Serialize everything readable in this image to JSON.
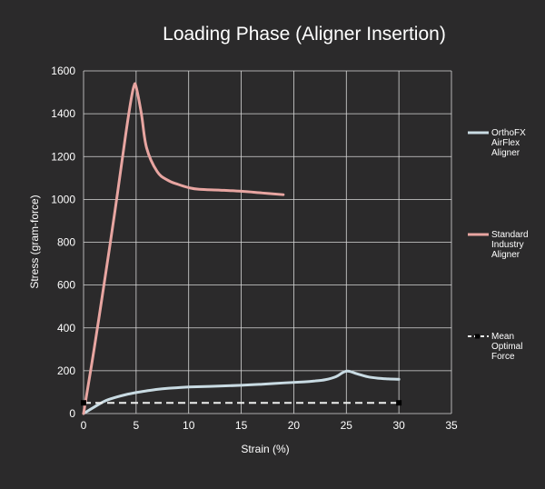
{
  "chart_data": {
    "type": "line",
    "title": "Loading Phase (Aligner Insertion)",
    "xlabel": "Strain (%)",
    "ylabel": "Stress (gram-force)",
    "xlim": [
      0,
      35
    ],
    "ylim": [
      0,
      1600
    ],
    "xticks": [
      "0",
      "5",
      "10",
      "15",
      "20",
      "25",
      "30",
      "35"
    ],
    "yticks": [
      "0",
      "200",
      "400",
      "600",
      "800",
      "1000",
      "1200",
      "1400",
      "1600"
    ],
    "grid": true,
    "legend_position": "right",
    "series": [
      {
        "name": "OrthoFX AirFlex Aligner",
        "color": "#c9dbe3",
        "style": "solid",
        "points": [
          [
            0,
            0
          ],
          [
            1,
            30
          ],
          [
            2,
            58
          ],
          [
            3,
            75
          ],
          [
            4,
            88
          ],
          [
            5,
            98
          ],
          [
            6,
            106
          ],
          [
            7,
            113
          ],
          [
            8,
            118
          ],
          [
            9,
            121
          ],
          [
            10,
            124
          ],
          [
            12,
            127
          ],
          [
            15,
            132
          ],
          [
            17,
            137
          ],
          [
            19,
            143
          ],
          [
            21,
            148
          ],
          [
            22,
            152
          ],
          [
            23,
            158
          ],
          [
            24,
            172
          ],
          [
            25,
            198
          ],
          [
            26,
            186
          ],
          [
            27,
            172
          ],
          [
            28,
            165
          ],
          [
            29,
            162
          ],
          [
            30,
            160
          ]
        ]
      },
      {
        "name": "Standard Industry Aligner",
        "color": "#e8a5a1",
        "style": "solid",
        "points": [
          [
            0,
            0
          ],
          [
            1,
            300
          ],
          [
            2,
            620
          ],
          [
            3,
            950
          ],
          [
            4,
            1300
          ],
          [
            4.5,
            1460
          ],
          [
            4.8,
            1530
          ],
          [
            5,
            1525
          ],
          [
            5.5,
            1400
          ],
          [
            6,
            1240
          ],
          [
            7,
            1130
          ],
          [
            8,
            1090
          ],
          [
            9,
            1070
          ],
          [
            10,
            1055
          ],
          [
            11,
            1047
          ],
          [
            13,
            1043
          ],
          [
            15,
            1038
          ],
          [
            17,
            1030
          ],
          [
            19,
            1022
          ]
        ]
      },
      {
        "name": "Mean Optimal Force",
        "color": "#eeeeee",
        "style": "dashed",
        "points": [
          [
            0,
            50
          ],
          [
            30,
            50
          ]
        ]
      }
    ]
  }
}
